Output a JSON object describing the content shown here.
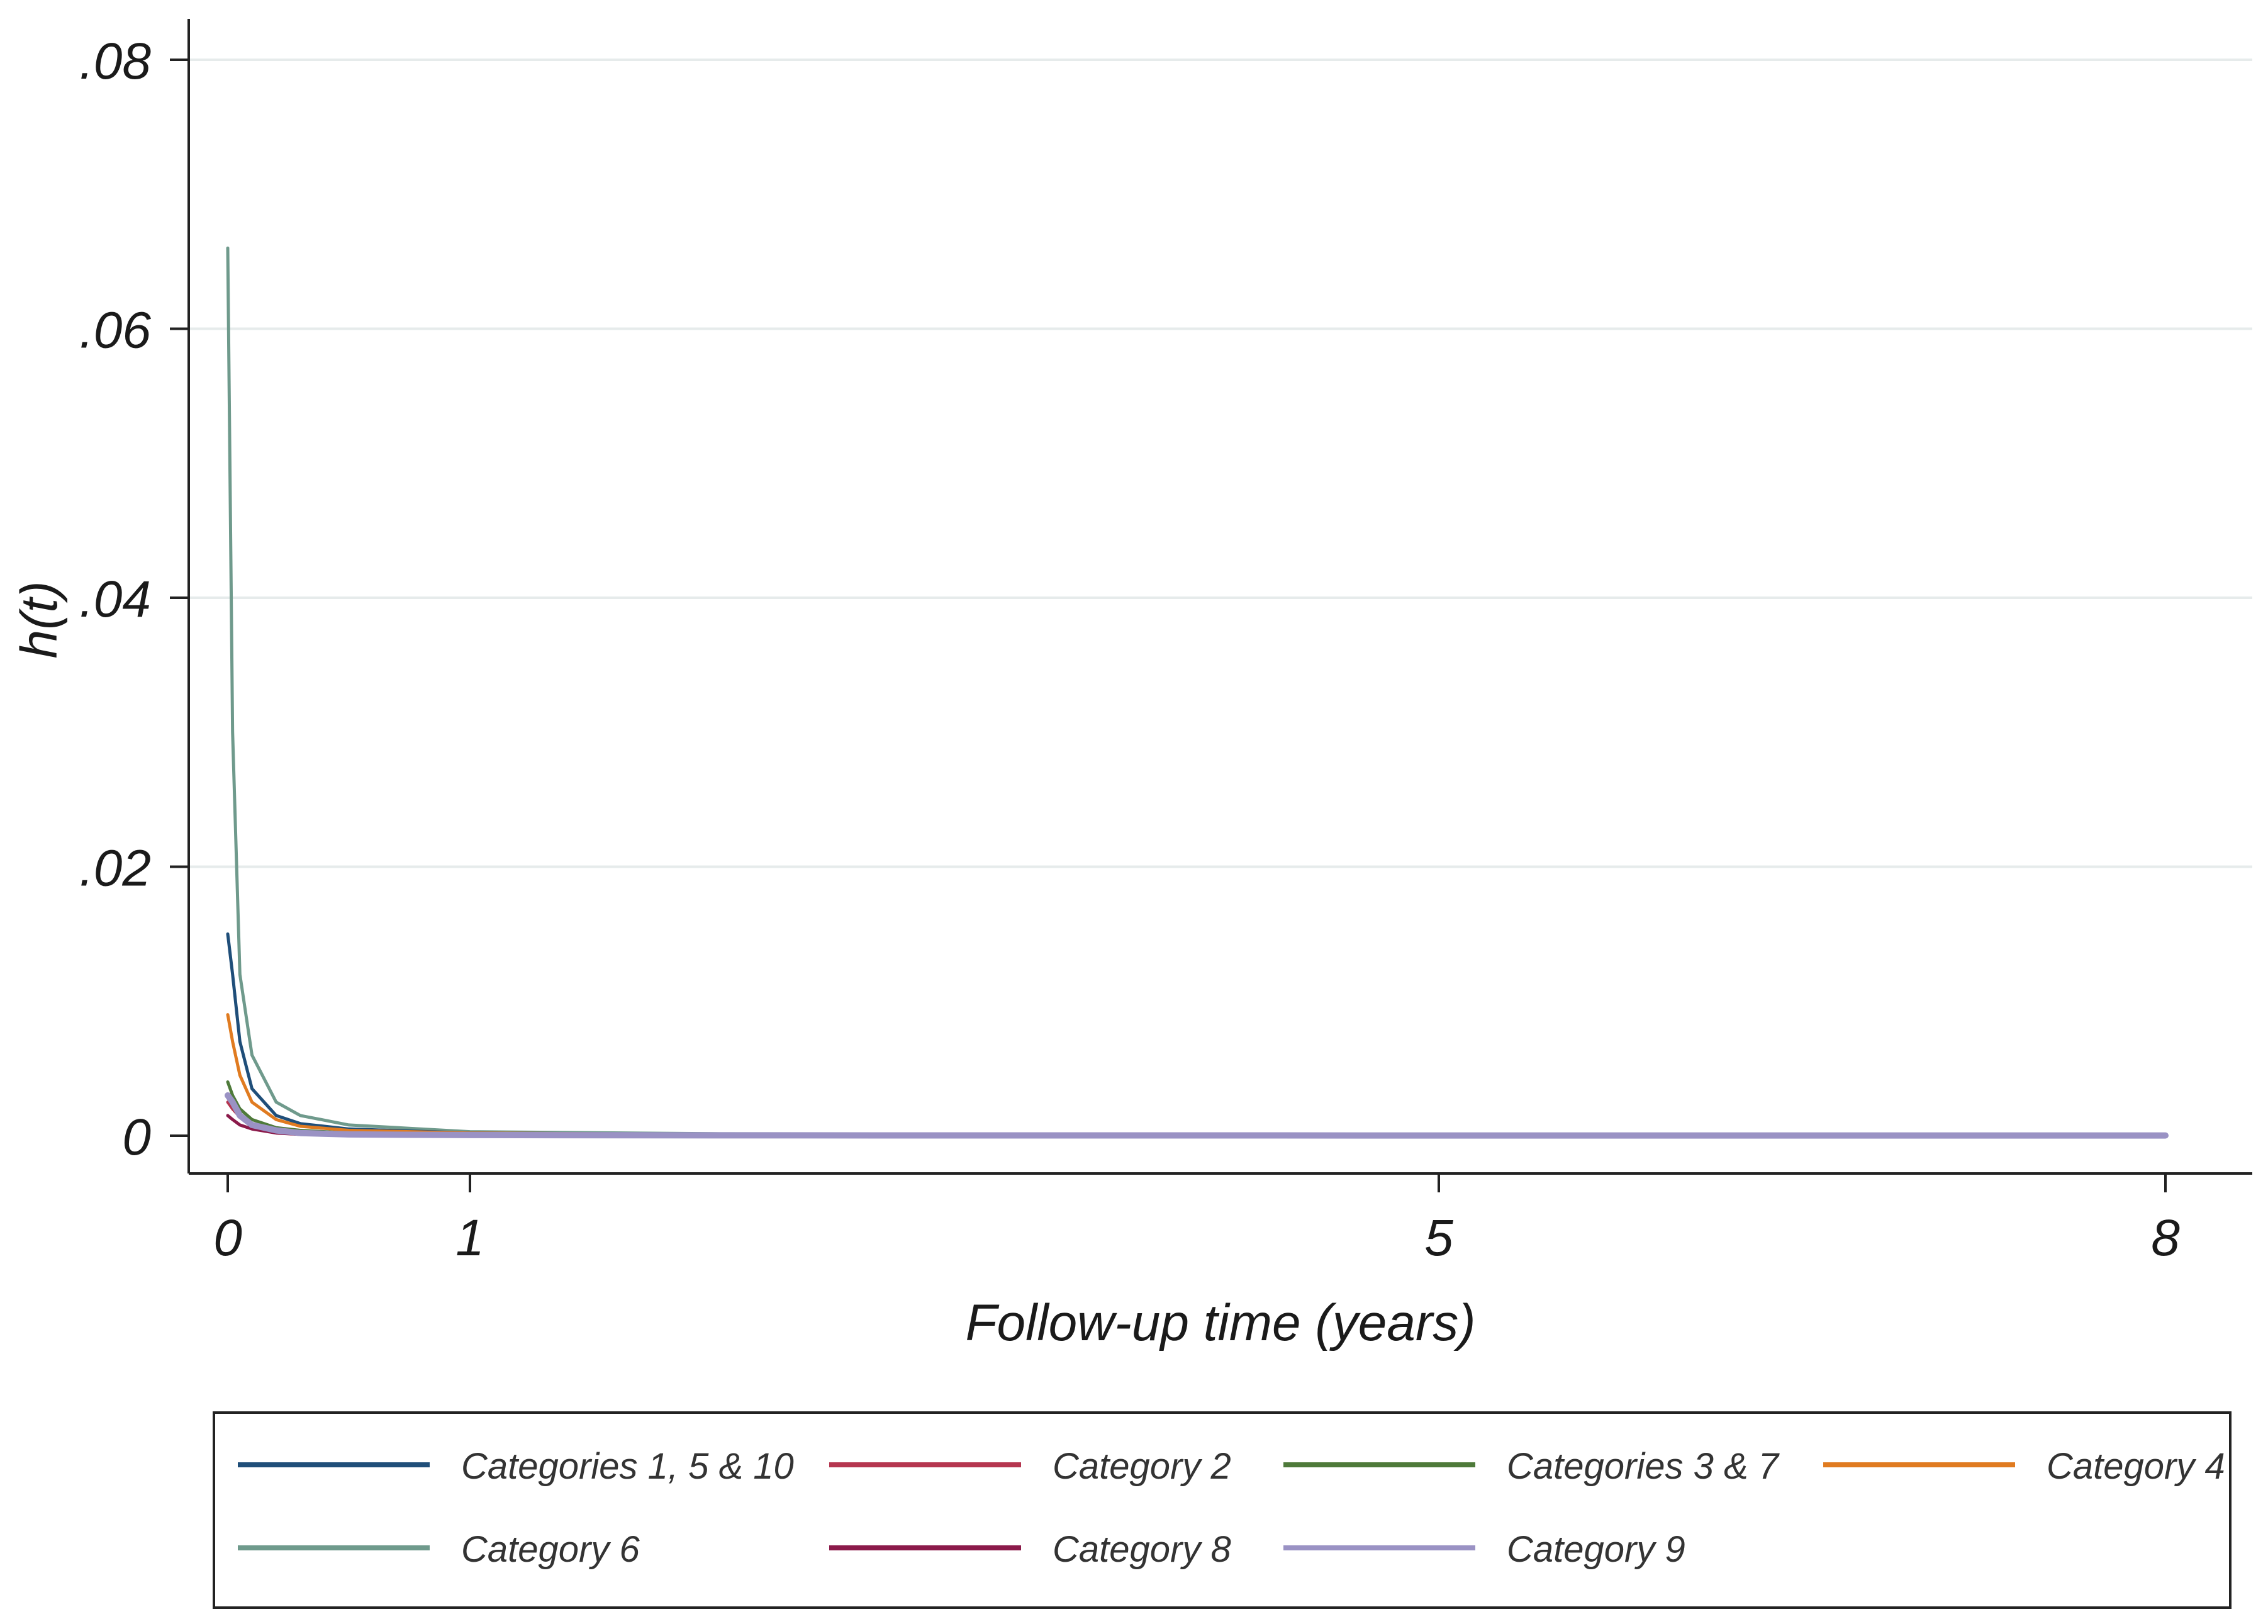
{
  "chart_data": {
    "type": "line",
    "title": "",
    "xlabel": "Follow-up time (years)",
    "ylabel": "h(t)",
    "xlim": [
      0,
      8
    ],
    "ylim": [
      0,
      0.08
    ],
    "x_ticks": [
      0,
      1,
      5,
      8
    ],
    "x_tick_labels": [
      "0",
      "1",
      "5",
      "8"
    ],
    "y_ticks": [
      0,
      0.02,
      0.04,
      0.06,
      0.08
    ],
    "y_tick_labels": [
      "0",
      ".02",
      ".04",
      ".06",
      ".08"
    ],
    "grid": "horizontal",
    "legend_position": "bottom",
    "series": [
      {
        "name": "Categories 1, 5 & 10",
        "color": "#1f4e79",
        "x": [
          0,
          0.02,
          0.05,
          0.1,
          0.2,
          0.3,
          0.5,
          1,
          2,
          5,
          8
        ],
        "y": [
          0.015,
          0.012,
          0.007,
          0.0035,
          0.0015,
          0.0009,
          0.0005,
          0.0002,
          0.0001,
          5e-05,
          3e-05
        ]
      },
      {
        "name": "Category 2",
        "color": "#b5364f",
        "x": [
          0,
          0.02,
          0.05,
          0.1,
          0.2,
          0.3,
          0.5,
          1,
          2,
          5,
          8
        ],
        "y": [
          0.0025,
          0.002,
          0.0014,
          0.0008,
          0.0004,
          0.0002,
          0.0001,
          5e-05,
          3e-05,
          2e-05,
          1e-05
        ]
      },
      {
        "name": "Categories 3 & 7",
        "color": "#4e7a3a",
        "x": [
          0,
          0.02,
          0.05,
          0.1,
          0.2,
          0.3,
          0.5,
          1,
          2,
          5,
          8
        ],
        "y": [
          0.004,
          0.003,
          0.002,
          0.0012,
          0.0006,
          0.0004,
          0.0002,
          0.0001,
          5e-05,
          3e-05,
          2e-05
        ]
      },
      {
        "name": "Category 4",
        "color": "#e07b20",
        "x": [
          0,
          0.02,
          0.05,
          0.1,
          0.2,
          0.3,
          0.5,
          1,
          2,
          5,
          8
        ],
        "y": [
          0.009,
          0.007,
          0.0045,
          0.0025,
          0.0012,
          0.0007,
          0.0004,
          0.0002,
          0.0001,
          5e-05,
          3e-05
        ]
      },
      {
        "name": "Category 6",
        "color": "#6f9a8c",
        "x": [
          0,
          0.02,
          0.05,
          0.1,
          0.2,
          0.3,
          0.5,
          1,
          2,
          5,
          8
        ],
        "y": [
          0.066,
          0.03,
          0.012,
          0.006,
          0.0025,
          0.0015,
          0.0008,
          0.0003,
          0.00015,
          8e-05,
          5e-05
        ]
      },
      {
        "name": "Category 8",
        "color": "#8b1a4a",
        "x": [
          0,
          0.02,
          0.05,
          0.1,
          0.2,
          0.3,
          0.5,
          1,
          2,
          5,
          8
        ],
        "y": [
          0.0015,
          0.0012,
          0.0008,
          0.0005,
          0.0002,
          0.0001,
          6e-05,
          3e-05,
          2e-05,
          1e-05,
          1e-05
        ]
      },
      {
        "name": "Category 9",
        "color": "#9a92c4",
        "x": [
          0,
          0.02,
          0.05,
          0.1,
          0.2,
          0.3,
          0.5,
          1,
          2,
          5,
          8
        ],
        "y": [
          0.003,
          0.0025,
          0.0015,
          0.0008,
          0.0004,
          0.0002,
          0.0001,
          5e-05,
          3e-05,
          2e-05,
          2e-05
        ]
      }
    ]
  }
}
